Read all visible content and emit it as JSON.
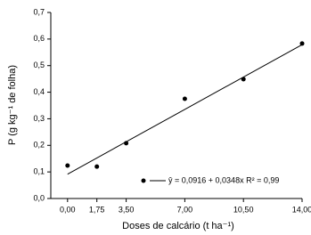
{
  "chart_data": {
    "type": "scatter",
    "x_label": "Doses de calcário (t ha⁻¹)",
    "y_label": "P (g kg⁻¹ de folha)",
    "series": [
      {
        "name": "ŷ = 0,0916 + 0,0348x   R² = 0,99",
        "color": "#000000",
        "x": [
          0,
          1.75,
          3.5,
          7,
          10.5,
          14
        ],
        "values": [
          0.124,
          0.12,
          0.208,
          0.375,
          0.449,
          0.583
        ]
      }
    ],
    "fit": {
      "intercept": 0.0916,
      "slope": 0.0348
    },
    "xlim": [
      -1,
      14
    ],
    "ylim": [
      0,
      0.7
    ],
    "xticks": [
      {
        "value": 0,
        "label": "0,00"
      },
      {
        "value": 1.75,
        "label": "1,75"
      },
      {
        "value": 3.5,
        "label": "3,50"
      },
      {
        "value": 7,
        "label": "7,00"
      },
      {
        "value": 10.5,
        "label": "10,50"
      },
      {
        "value": 14,
        "label": "14,00"
      }
    ],
    "yticks": [
      {
        "value": 0,
        "label": "0,0"
      },
      {
        "value": 0.1,
        "label": "0,1"
      },
      {
        "value": 0.2,
        "label": "0,2"
      },
      {
        "value": 0.3,
        "label": "0,3"
      },
      {
        "value": 0.4,
        "label": "0,4"
      },
      {
        "value": 0.5,
        "label": "0,5"
      },
      {
        "value": 0.6,
        "label": "0,6"
      },
      {
        "value": 0.7,
        "label": "0,7"
      }
    ]
  }
}
